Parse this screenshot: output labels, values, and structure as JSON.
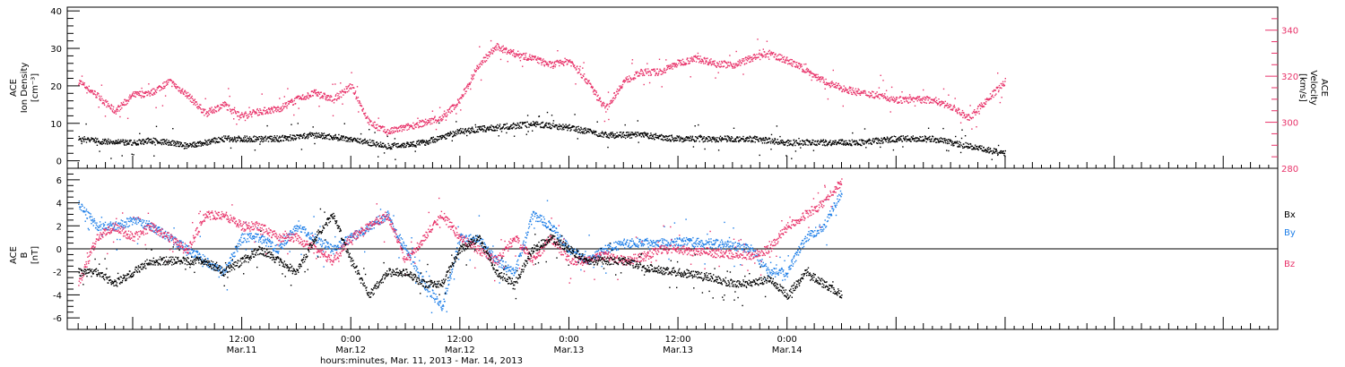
{
  "colors": {
    "black": "#000000",
    "red": "#e8336a",
    "blue": "#1f7fe8"
  },
  "chart_data": [
    {
      "type": "scatter",
      "panel": "top",
      "ylabel_left": [
        "ACE",
        "Ion Density",
        "[cm⁻³]"
      ],
      "ylabel_right": [
        "ACE",
        "Velocity",
        "[km/s]"
      ],
      "ylim_left": [
        -2,
        41
      ],
      "yticks_left": [
        "0",
        "10",
        "20",
        "30",
        "40"
      ],
      "ylim_right": [
        280,
        350
      ],
      "yticks_right": [
        "280",
        "300",
        "320",
        "340"
      ],
      "grid": false,
      "series": [
        {
          "axis": "left",
          "color": "black",
          "x": [
            -6,
            -4,
            -2,
            0,
            2,
            4,
            6,
            8,
            10,
            12,
            14,
            16,
            20,
            24,
            28,
            32,
            36,
            40,
            44,
            48,
            52,
            56,
            60,
            64,
            68,
            72,
            76,
            80,
            84,
            88,
            92,
            96
          ],
          "y": [
            6,
            5.5,
            5,
            5,
            5.5,
            5,
            4,
            5,
            6,
            6,
            6,
            6,
            7,
            6,
            4,
            5,
            8,
            9,
            10,
            9,
            7,
            7,
            6,
            6,
            6,
            5,
            5,
            5,
            6,
            6,
            4,
            2
          ]
        },
        {
          "axis": "right",
          "color": "red",
          "x": [
            -6,
            -4,
            -2,
            0,
            2,
            4,
            6,
            8,
            10,
            12,
            14,
            16,
            18,
            20,
            22,
            24,
            26,
            28,
            30,
            32,
            34,
            36,
            38,
            40,
            42,
            44,
            46,
            48,
            50,
            52,
            54,
            56,
            58,
            60,
            62,
            64,
            66,
            68,
            70,
            72,
            74,
            76,
            78,
            80,
            82,
            84,
            86,
            88,
            90,
            92,
            94,
            96
          ],
          "y": [
            318,
            312,
            305,
            312,
            313,
            318,
            312,
            304,
            308,
            303,
            305,
            306,
            310,
            313,
            310,
            316,
            300,
            296,
            298,
            300,
            302,
            310,
            325,
            333,
            330,
            328,
            325,
            327,
            318,
            306,
            318,
            322,
            322,
            326,
            328,
            326,
            325,
            328,
            330,
            327,
            323,
            318,
            315,
            313,
            312,
            310,
            310,
            310,
            307,
            302,
            310,
            318
          ]
        }
      ]
    },
    {
      "type": "scatter",
      "panel": "bottom",
      "ylabel_left": [
        "ACE",
        "B",
        "[nT]"
      ],
      "ylim": [
        -7,
        7
      ],
      "yticks": [
        "-6",
        "-4",
        "-2",
        "0",
        "2",
        "4",
        "6"
      ],
      "xlim": [
        -7.2,
        126
      ],
      "x_unit": "hours since 00:00 Mar.11, 2013",
      "xticks": [
        {
          "x": 12,
          "time": "12:00",
          "date": "Mar.11"
        },
        {
          "x": 24,
          "time": "0:00",
          "date": "Mar.12"
        },
        {
          "x": 36,
          "time": "12:00",
          "date": "Mar.12"
        },
        {
          "x": 48,
          "time": "0:00",
          "date": "Mar.13"
        },
        {
          "x": 60,
          "time": "12:00",
          "date": "Mar.13"
        },
        {
          "x": 72,
          "time": "0:00",
          "date": "Mar.14"
        }
      ],
      "xlabel": "hours:minutes, Mar. 11, 2013 - Mar. 14, 2013",
      "legend_placement": "right",
      "series": [
        {
          "name": "Bx",
          "color": "black",
          "x": [
            -6,
            -4,
            -2,
            0,
            2,
            4,
            6,
            8,
            10,
            12,
            14,
            16,
            18,
            20,
            22,
            24,
            26,
            28,
            30,
            32,
            34,
            36,
            38,
            40,
            42,
            44,
            46,
            48,
            50,
            52,
            54,
            56,
            58,
            60,
            62,
            64,
            66,
            68,
            70,
            72,
            74,
            76,
            78
          ],
          "y": [
            -2,
            -2,
            -3,
            -2,
            -1,
            -1,
            -1,
            -1,
            -2,
            -1,
            0,
            -1,
            -2,
            1,
            3,
            -1,
            -4,
            -2,
            -2,
            -3,
            -3,
            0,
            1,
            -2,
            -3,
            0,
            1,
            0,
            -1,
            -1,
            -1,
            -1.5,
            -1.8,
            -2,
            -2.2,
            -2.5,
            -3,
            -3,
            -2.5,
            -4,
            -2,
            -3,
            -4
          ]
        },
        {
          "name": "By",
          "color": "blue",
          "x": [
            -6,
            -4,
            -2,
            0,
            2,
            4,
            6,
            8,
            10,
            12,
            14,
            16,
            18,
            20,
            22,
            24,
            26,
            28,
            30,
            32,
            34,
            36,
            38,
            40,
            42,
            44,
            46,
            48,
            50,
            52,
            54,
            56,
            58,
            60,
            62,
            64,
            66,
            68,
            70,
            72,
            74,
            76,
            78
          ],
          "y": [
            4,
            2,
            2,
            2.5,
            2,
            1,
            0,
            -1,
            -2,
            1,
            1,
            0,
            2,
            1,
            0,
            1,
            2,
            3,
            0,
            -3,
            -5,
            1,
            1,
            -1,
            -2,
            3,
            2,
            0,
            -1,
            0,
            0.5,
            0.6,
            0.6,
            0.7,
            0.6,
            0.5,
            0.3,
            0,
            -2,
            -2,
            1,
            2,
            5
          ]
        },
        {
          "name": "Bz",
          "color": "red",
          "x": [
            -6,
            -4,
            -2,
            0,
            2,
            4,
            6,
            8,
            10,
            12,
            14,
            16,
            18,
            20,
            22,
            24,
            26,
            28,
            30,
            32,
            34,
            36,
            38,
            40,
            42,
            44,
            46,
            48,
            50,
            52,
            54,
            56,
            58,
            60,
            62,
            64,
            66,
            68,
            70,
            72,
            74,
            76,
            78
          ],
          "y": [
            -3,
            1,
            2,
            1,
            2,
            1,
            0,
            3,
            3,
            2,
            2,
            1,
            1,
            0,
            -1,
            1,
            2,
            3,
            -1,
            1,
            3,
            1,
            0,
            -1,
            1,
            -1,
            1,
            -1,
            -1,
            -0.5,
            -1,
            -0.7,
            0,
            0,
            -0.2,
            -0.3,
            -0.5,
            -0.5,
            0,
            2,
            3,
            4,
            6
          ]
        }
      ]
    }
  ]
}
